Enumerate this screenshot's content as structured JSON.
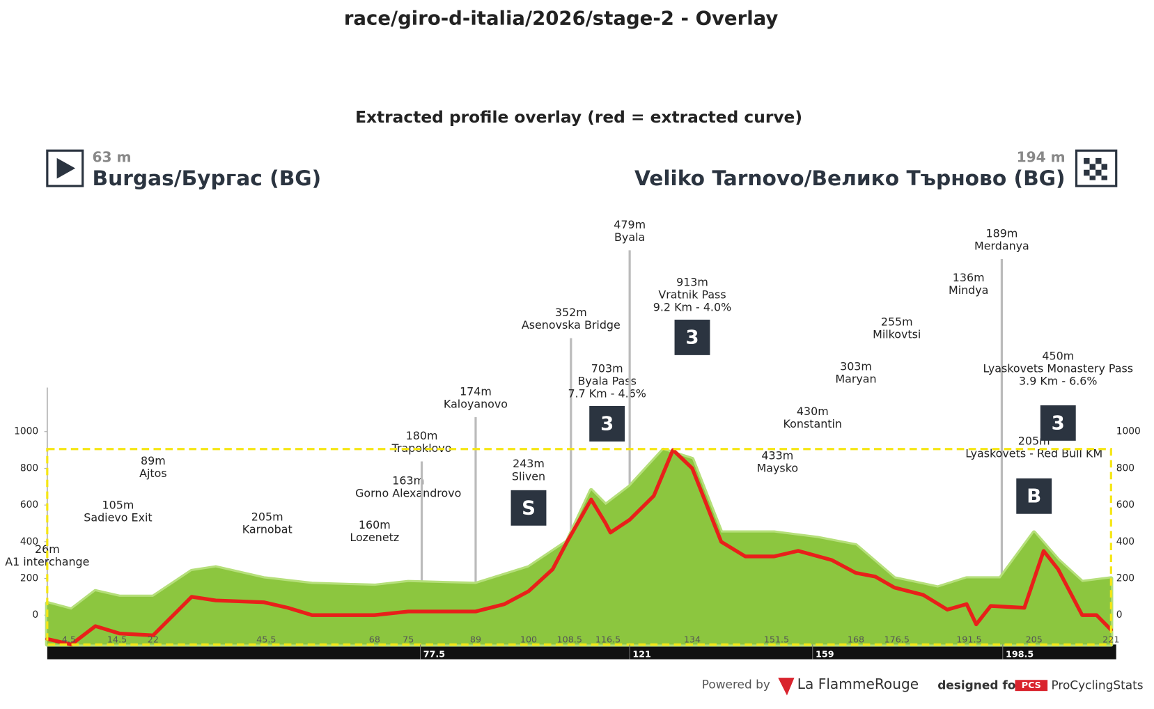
{
  "header": {
    "title": "race/giro-d-italia/2026/stage-2 - Overlay"
  },
  "start": {
    "altitude": "63 m",
    "name": "Burgas/Бургас (BG)"
  },
  "finish": {
    "altitude": "194 m",
    "name": "Veliko Tarnovo/Велико Търново (BG)"
  },
  "footer": {
    "powered": "Powered by",
    "brand": "La FlammeRouge",
    "designed": "designed for",
    "pcs": "PCS",
    "pcs_name": "ProCyclingStats"
  },
  "chart_data": {
    "type": "line",
    "title": "Extracted profile overlay (red = extracted curve)",
    "xlim": [
      0,
      221
    ],
    "ylim": [
      -160,
      1240
    ],
    "yticks": [
      0,
      200,
      400,
      600,
      800,
      1000
    ],
    "xticks": [
      4.5,
      14.5,
      22,
      45.5,
      68,
      75,
      89,
      100,
      108.5,
      116.5,
      134,
      151.5,
      168,
      176.5,
      191.5,
      205,
      221
    ],
    "bar_ticks": [
      77.5,
      121,
      159,
      198.5
    ],
    "box_ylim": [
      -160,
      905
    ],
    "series": [
      {
        "name": "profile",
        "color": "#8cc63f",
        "x": [
          0,
          5,
          10,
          15,
          22,
          30,
          35,
          45,
          55,
          68,
          75,
          89,
          100,
          108,
          113,
          116,
          121,
          128,
          134,
          140,
          151,
          160,
          168,
          176,
          185,
          191,
          198,
          205,
          210,
          215,
          221
        ],
        "values": [
          65,
          30,
          130,
          100,
          100,
          240,
          260,
          200,
          170,
          160,
          180,
          170,
          260,
          400,
          680,
          600,
          700,
          900,
          850,
          450,
          450,
          420,
          380,
          200,
          150,
          200,
          200,
          450,
          300,
          180,
          200
        ]
      },
      {
        "name": "extracted",
        "color": "#e8201a",
        "x": [
          0,
          5,
          10,
          15,
          22,
          30,
          35,
          45,
          50,
          55,
          68,
          75,
          89,
          95,
          100,
          105,
          108,
          113,
          116,
          117,
          121,
          126,
          130,
          134,
          140,
          145,
          151,
          156,
          163,
          168,
          172,
          176,
          182,
          187,
          191,
          193,
          196,
          203,
          207,
          210,
          215,
          218,
          221
        ],
        "values": [
          -130,
          -160,
          -60,
          -100,
          -110,
          100,
          80,
          70,
          40,
          0,
          0,
          20,
          20,
          60,
          130,
          250,
          400,
          630,
          500,
          450,
          520,
          650,
          900,
          800,
          400,
          320,
          320,
          350,
          300,
          230,
          210,
          150,
          110,
          30,
          60,
          -50,
          50,
          40,
          350,
          250,
          0,
          0,
          -80
        ]
      }
    ],
    "annotations": [
      {
        "km": 0.5,
        "elevation": "26m",
        "name": "A1 interchange"
      },
      {
        "km": 14.7,
        "elevation": "105m",
        "name": "Sadievo Exit"
      },
      {
        "km": 22,
        "elevation": "89m",
        "name": "Ajtos"
      },
      {
        "km": 45.7,
        "elevation": "205m",
        "name": "Karnobat"
      },
      {
        "km": 68,
        "elevation": "160m",
        "name": "Lozenetz"
      },
      {
        "km": 75,
        "elevation": "163m",
        "name": "Gorno Alexandrovo"
      },
      {
        "km": 77.8,
        "elevation": "180m",
        "name": "Trapoklovo"
      },
      {
        "km": 89,
        "elevation": "174m",
        "name": "Kaloyanovo"
      },
      {
        "km": 100,
        "elevation": "243m",
        "name": "Sliven",
        "icon": "S"
      },
      {
        "km": 108.8,
        "elevation": "352m",
        "name": "Asenovska Bridge"
      },
      {
        "km": 116.3,
        "elevation": "703m",
        "name": "Byala Pass",
        "detail": "7.7 Km - 4.6%",
        "icon": "3"
      },
      {
        "km": 121,
        "elevation": "479m",
        "name": "Byala"
      },
      {
        "km": 134,
        "elevation": "913m",
        "name": "Vratnik Pass",
        "detail": "9.2 Km - 4.0%",
        "icon": "3"
      },
      {
        "km": 151.7,
        "elevation": "433m",
        "name": "Maysko"
      },
      {
        "km": 159,
        "elevation": "430m",
        "name": "Konstantin"
      },
      {
        "km": 168,
        "elevation": "303m",
        "name": "Maryan"
      },
      {
        "km": 176.5,
        "elevation": "255m",
        "name": "Milkovtsi"
      },
      {
        "km": 191.4,
        "elevation": "136m",
        "name": "Mindya"
      },
      {
        "km": 198.3,
        "elevation": "189m",
        "name": "Merdanya"
      },
      {
        "km": 205,
        "elevation": "205m",
        "name": "Lyaskovets - Red Bull KM",
        "icon": "B"
      },
      {
        "km": 210,
        "elevation": "450m",
        "name": "Lyaskovets Monastery Pass",
        "detail": "3.9 Km - 6.6%",
        "icon": "3"
      }
    ]
  }
}
